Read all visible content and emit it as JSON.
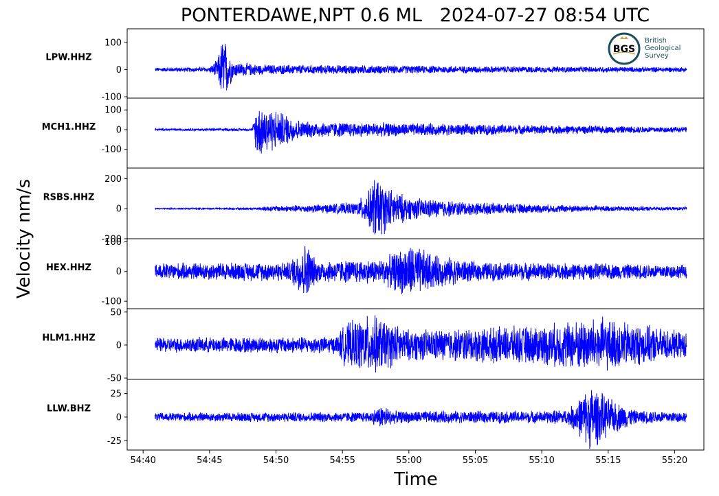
{
  "chart_data": {
    "type": "line",
    "title": "PONTERDAWE,NPT 0.6 ML   2024-07-27 08:54 UTC",
    "ylabel": "Velocity nm/s",
    "xlabel": "Time",
    "x_tick_labels": [
      "54:40",
      "54:45",
      "54:50",
      "54:55",
      "55:00",
      "55:05",
      "55:10",
      "55:15",
      "55:20"
    ],
    "x_tick_seconds": [
      0,
      5,
      10,
      15,
      20,
      25,
      30,
      35,
      40
    ],
    "xlim_seconds": [
      -1.2,
      42.2
    ],
    "trace_span_seconds": [
      0.9,
      40.9
    ],
    "line_color": "#0000ff",
    "grid": false,
    "logo": {
      "name": "BGS",
      "text": [
        "British",
        "Geological",
        "Survey"
      ],
      "color": "#1a4f5a"
    },
    "series": [
      {
        "name": "LPW.HHZ",
        "ylim": [
          -105,
          150
        ],
        "y_ticks": [
          100,
          0,
          -100
        ],
        "y_tick_labels": [
          "100",
          "0",
          "-100"
        ],
        "noise_amplitude": 8,
        "envelope": [
          [
            0.9,
            8
          ],
          [
            5.0,
            10
          ],
          [
            5.6,
            40
          ],
          [
            6.0,
            140
          ],
          [
            6.8,
            30
          ],
          [
            9.0,
            20
          ],
          [
            20,
            16
          ],
          [
            30,
            12
          ],
          [
            40.9,
            10
          ]
        ]
      },
      {
        "name": "MCH1.HHZ",
        "ylim": [
          -195,
          160
        ],
        "y_ticks": [
          100,
          0,
          -100
        ],
        "y_tick_labels": [
          "100",
          "0",
          "-100"
        ],
        "noise_amplitude": 5,
        "envelope": [
          [
            0.9,
            6
          ],
          [
            8.2,
            7
          ],
          [
            8.6,
            150
          ],
          [
            10,
            110
          ],
          [
            12,
            45
          ],
          [
            20,
            35
          ],
          [
            30,
            25
          ],
          [
            40.9,
            15
          ]
        ]
      },
      {
        "name": "RSBS.HHZ",
        "ylim": [
          -200,
          270
        ],
        "y_ticks": [
          200,
          0,
          -200
        ],
        "y_tick_labels": [
          "200",
          "0",
          "-200"
        ],
        "noise_amplitude": 4,
        "envelope": [
          [
            0.9,
            5
          ],
          [
            8.5,
            6
          ],
          [
            9.2,
            18
          ],
          [
            13,
            30
          ],
          [
            16,
            45
          ],
          [
            17.0,
            130
          ],
          [
            17.4,
            240
          ],
          [
            18.5,
            150
          ],
          [
            20,
            80
          ],
          [
            25,
            45
          ],
          [
            30,
            30
          ],
          [
            40.9,
            10
          ]
        ]
      },
      {
        "name": "HEX.HHZ",
        "ylim": [
          -125,
          110
        ],
        "y_ticks": [
          100,
          0,
          -100
        ],
        "y_tick_labels": [
          "100",
          "0",
          "-100"
        ],
        "noise_amplitude": 28,
        "envelope": [
          [
            0.9,
            30
          ],
          [
            11,
            35
          ],
          [
            12.3,
            110
          ],
          [
            13,
            40
          ],
          [
            18,
            45
          ],
          [
            19.3,
            80
          ],
          [
            20.2,
            100
          ],
          [
            22,
            60
          ],
          [
            25,
            35
          ],
          [
            40.9,
            25
          ]
        ]
      },
      {
        "name": "HLM1.HHZ",
        "ylim": [
          -52,
          55
        ],
        "y_ticks": [
          50,
          0,
          -50
        ],
        "y_tick_labels": [
          "50",
          "0",
          "-50"
        ],
        "noise_amplitude": 12,
        "envelope": [
          [
            0.9,
            12
          ],
          [
            14.5,
            14
          ],
          [
            15.2,
            35
          ],
          [
            17.2,
            50
          ],
          [
            20,
            25
          ],
          [
            25,
            28
          ],
          [
            30,
            32
          ],
          [
            32,
            40
          ],
          [
            34.5,
            45
          ],
          [
            37,
            35
          ],
          [
            40.9,
            20
          ]
        ]
      },
      {
        "name": "LLW.BHZ",
        "ylim": [
          -35,
          40
        ],
        "y_ticks": [
          25,
          0,
          -25
        ],
        "y_tick_labels": [
          "25",
          "0",
          "-25"
        ],
        "noise_amplitude": 5,
        "envelope": [
          [
            0.9,
            5
          ],
          [
            17,
            6
          ],
          [
            18,
            14
          ],
          [
            19,
            7
          ],
          [
            30,
            7
          ],
          [
            32,
            9
          ],
          [
            33,
            25
          ],
          [
            33.7,
            38
          ],
          [
            35,
            22
          ],
          [
            37,
            8
          ],
          [
            40.9,
            6
          ]
        ]
      }
    ]
  }
}
